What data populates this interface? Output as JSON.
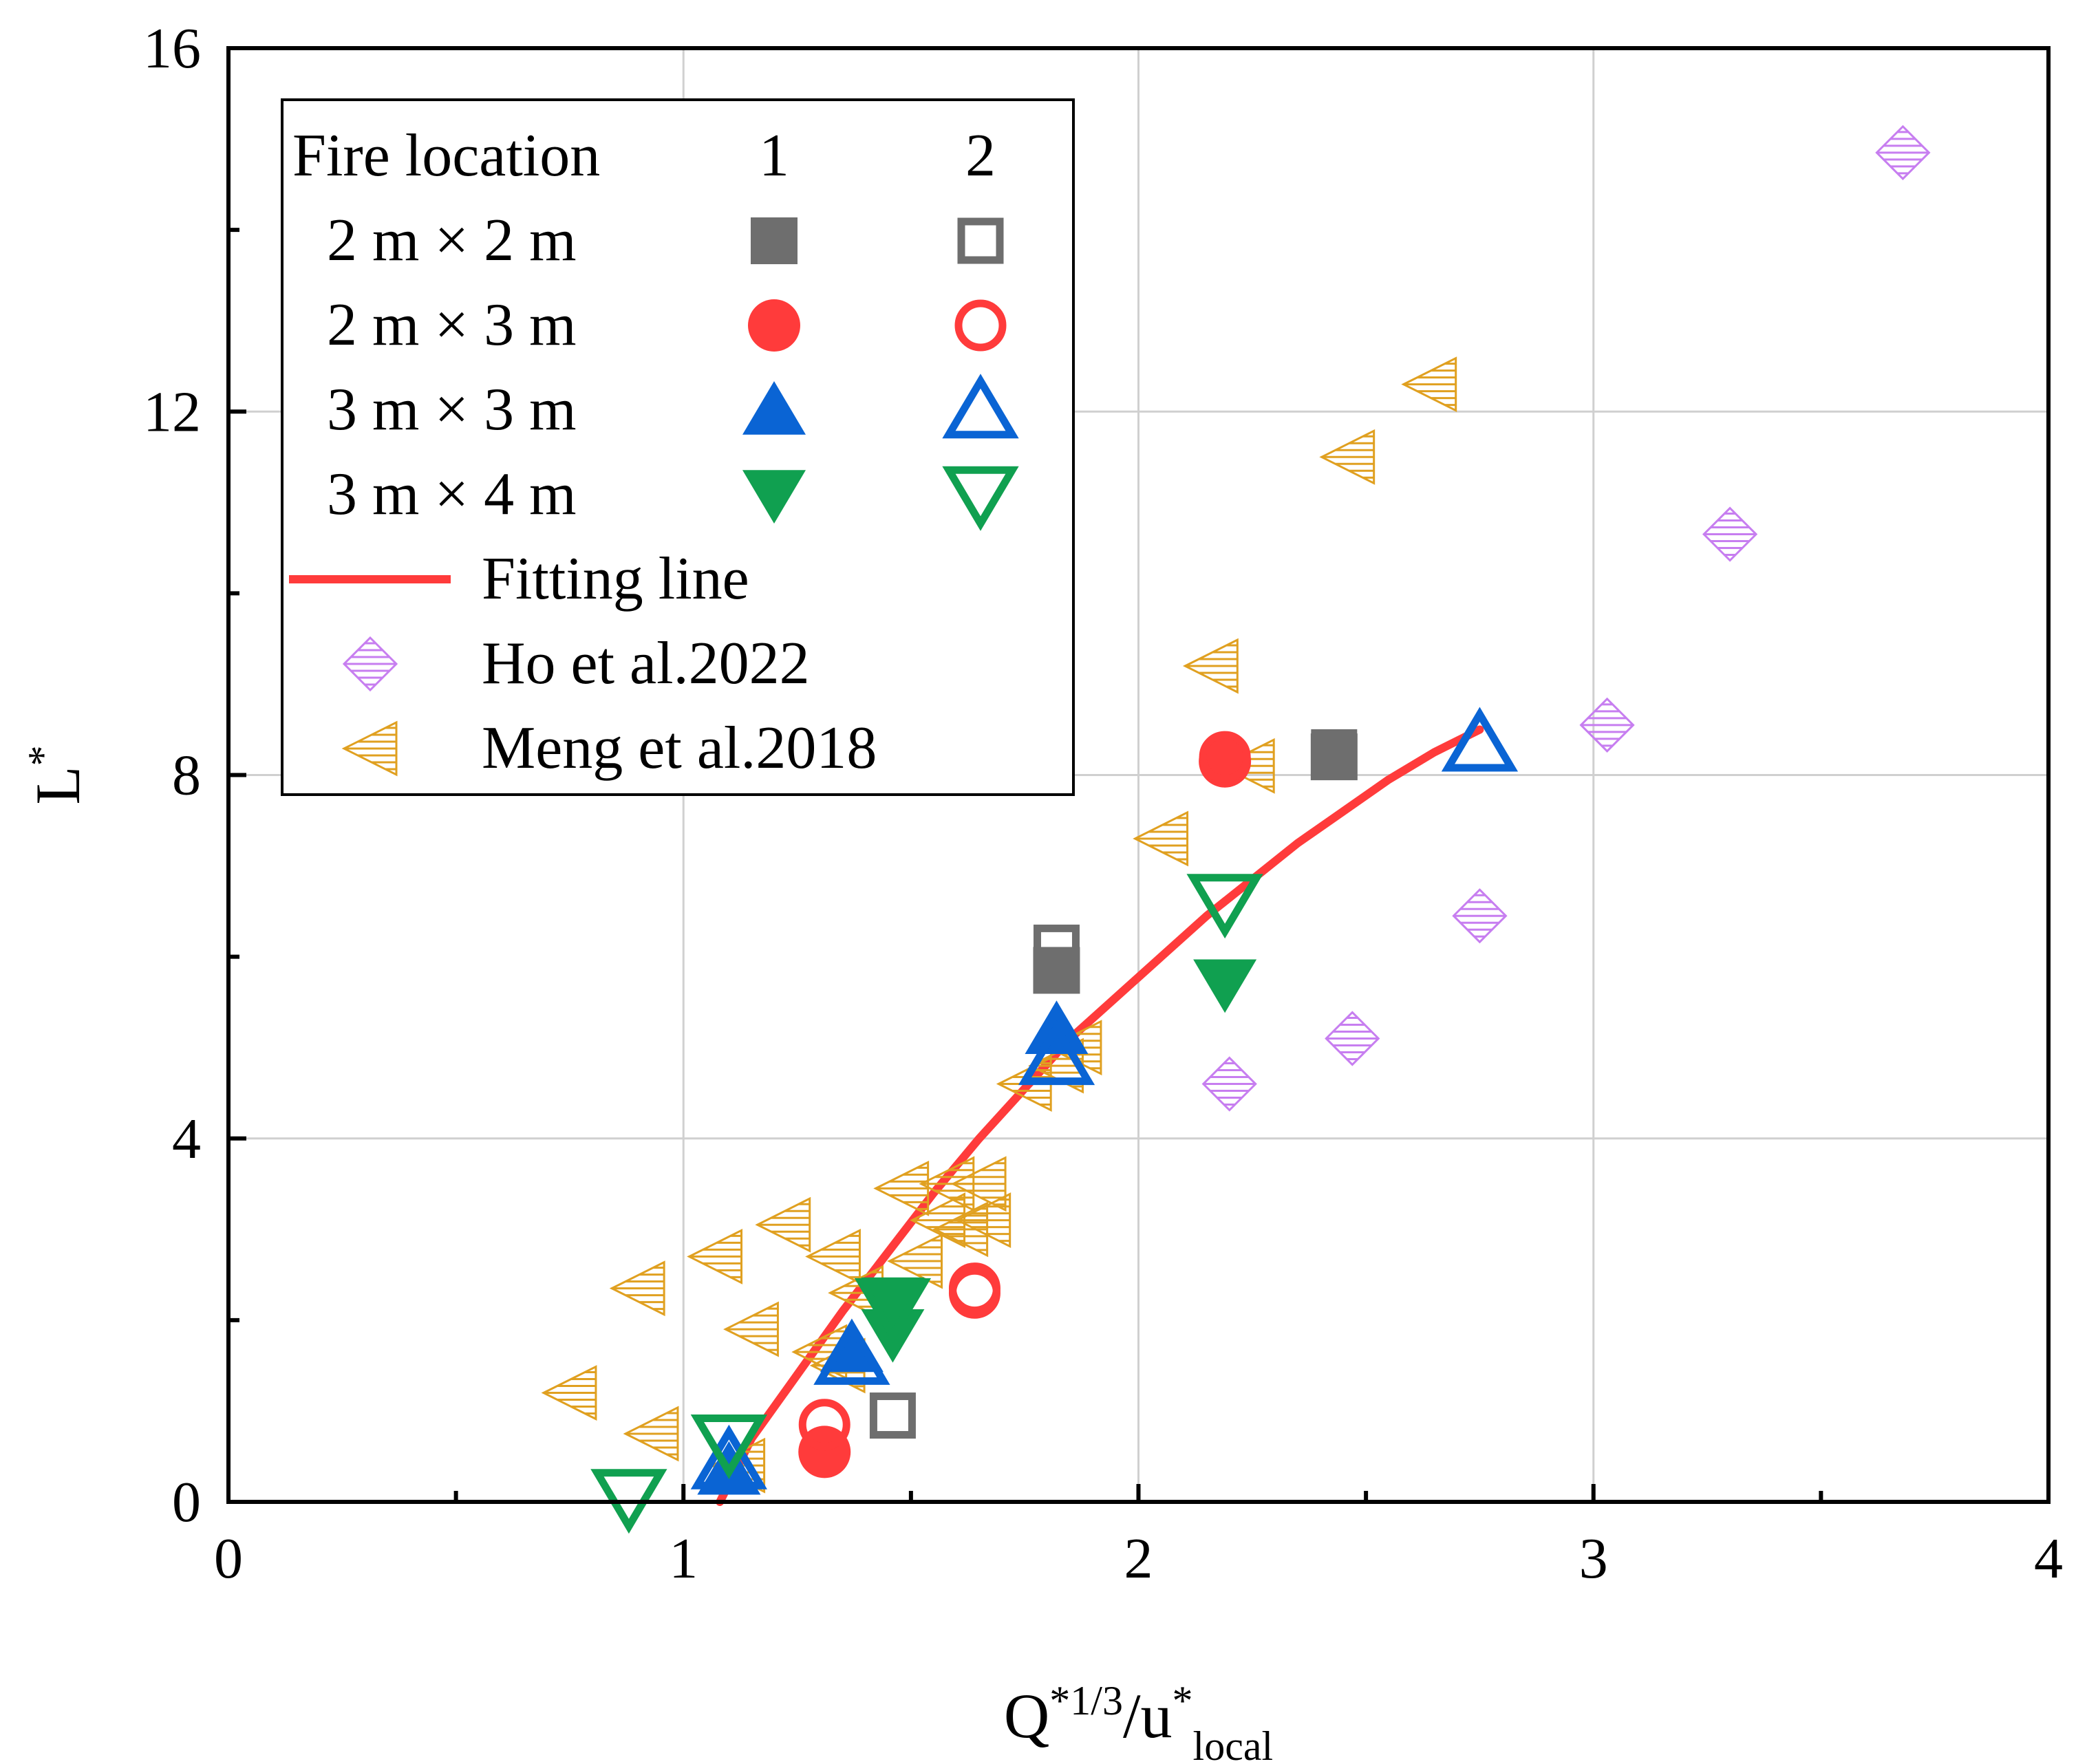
{
  "chart_data": {
    "type": "scatter",
    "xlabel": {
      "main": "Q",
      "sup": "*1/3",
      "mid": "/u",
      "sup2": "*",
      "sub": "local"
    },
    "ylabel": {
      "main": "L",
      "sup": "*"
    },
    "xlim": [
      0,
      4
    ],
    "ylim": [
      0,
      16
    ],
    "xticks": [
      "0",
      "1",
      "2",
      "3",
      "4"
    ],
    "yticks": [
      "0",
      "4",
      "8",
      "12",
      "16"
    ],
    "xtick_values": [
      0,
      1,
      2,
      3,
      4
    ],
    "ytick_values": [
      0,
      4,
      8,
      12,
      16
    ],
    "minor_xticks": [
      0.5,
      1.5,
      2.5,
      3.5
    ],
    "minor_yticks": [
      2,
      6,
      10,
      14
    ],
    "grid": true,
    "legend": {
      "position": "top-left",
      "header": {
        "title": "Fire location",
        "col1": "1",
        "col2": "2"
      },
      "size_rows": [
        "2 m × 2 m",
        "2 m × 3 m",
        "3 m × 3 m",
        "3 m × 4 m"
      ],
      "fit_label": "Fitting line",
      "ref_labels": [
        "Ho et al.2022",
        "Meng et al.2018"
      ]
    },
    "colors": {
      "square": "#6e6e6e",
      "circle": "#ff3b3b",
      "up_triangle": "#0a64d4",
      "down_triangle": "#10a050",
      "fit_line": "#ff3b3b",
      "ho": "#c77ef0",
      "meng": "#e0a020"
    },
    "series": [
      {
        "group": "2 m × 2 m",
        "location": "1",
        "marker": "square",
        "filled": true,
        "points": [
          [
            1.82,
            5.85
          ],
          [
            2.43,
            8.2
          ]
        ]
      },
      {
        "group": "2 m × 2 m",
        "location": "2",
        "marker": "square",
        "filled": false,
        "points": [
          [
            1.82,
            6.1
          ],
          [
            2.43,
            8.25
          ],
          [
            1.46,
            0.95
          ]
        ]
      },
      {
        "group": "2 m × 3 m",
        "location": "1",
        "marker": "circle",
        "filled": true,
        "points": [
          [
            1.31,
            0.55
          ],
          [
            2.19,
            8.15
          ]
        ]
      },
      {
        "group": "2 m × 3 m",
        "location": "2",
        "marker": "circle",
        "filled": false,
        "points": [
          [
            1.31,
            0.85
          ],
          [
            1.64,
            2.35
          ],
          [
            2.19,
            8.2
          ],
          [
            1.64,
            2.3
          ]
        ]
      },
      {
        "group": "3 m × 3 m",
        "location": "1",
        "marker": "triangle-up",
        "filled": true,
        "points": [
          [
            1.37,
            1.7
          ],
          [
            1.82,
            5.2
          ],
          [
            1.1,
            0.35
          ]
        ]
      },
      {
        "group": "3 m × 3 m",
        "location": "2",
        "marker": "triangle-up",
        "filled": false,
        "points": [
          [
            1.37,
            1.6
          ],
          [
            1.82,
            4.9
          ],
          [
            2.75,
            8.35
          ],
          [
            1.1,
            0.45
          ]
        ]
      },
      {
        "group": "3 m × 4 m",
        "location": "1",
        "marker": "triangle-down",
        "filled": true,
        "points": [
          [
            1.46,
            1.85
          ],
          [
            2.19,
            5.7
          ],
          [
            1.46,
            2.2
          ]
        ]
      },
      {
        "group": "3 m × 4 m",
        "location": "2",
        "marker": "triangle-down",
        "filled": false,
        "points": [
          [
            0.88,
            0.05
          ],
          [
            1.1,
            0.65
          ],
          [
            1.46,
            2.15
          ],
          [
            2.19,
            6.6
          ]
        ]
      },
      {
        "group": "Ho et al.2022",
        "marker": "diamond",
        "filled": false,
        "points": [
          [
            2.2,
            4.6
          ],
          [
            2.47,
            5.1
          ],
          [
            2.75,
            6.45
          ],
          [
            3.03,
            8.55
          ],
          [
            3.3,
            10.65
          ],
          [
            3.68,
            14.85
          ]
        ]
      },
      {
        "group": "Meng et al.2018",
        "marker": "triangle-left",
        "filled": false,
        "points": [
          [
            0.75,
            1.2
          ],
          [
            0.93,
            0.75
          ],
          [
            0.9,
            2.35
          ],
          [
            1.07,
            2.7
          ],
          [
            1.15,
            1.9
          ],
          [
            1.22,
            3.05
          ],
          [
            1.3,
            1.65
          ],
          [
            1.34,
            1.5
          ],
          [
            1.33,
            2.7
          ],
          [
            1.38,
            2.3
          ],
          [
            1.48,
            3.45
          ],
          [
            1.51,
            2.65
          ],
          [
            1.58,
            3.5
          ],
          [
            1.56,
            3.1
          ],
          [
            1.65,
            3.5
          ],
          [
            1.61,
            3.0
          ],
          [
            1.66,
            3.1
          ],
          [
            1.75,
            4.6
          ],
          [
            1.82,
            4.8
          ],
          [
            1.86,
            5.0
          ],
          [
            2.05,
            7.3
          ],
          [
            2.16,
            9.2
          ],
          [
            2.24,
            8.1
          ],
          [
            2.46,
            11.5
          ],
          [
            2.64,
            12.3
          ],
          [
            1.12,
            0.4
          ]
        ]
      }
    ],
    "fit_line": {
      "x": [
        1.08,
        1.15,
        1.25,
        1.35,
        1.45,
        1.55,
        1.65,
        1.75,
        1.85,
        1.95,
        2.05,
        2.15,
        2.25,
        2.35,
        2.45,
        2.55,
        2.65,
        2.75
      ],
      "y": [
        0.0,
        0.7,
        1.4,
        2.1,
        2.75,
        3.4,
        4.0,
        4.55,
        5.1,
        5.55,
        6.0,
        6.45,
        6.85,
        7.25,
        7.6,
        7.95,
        8.25,
        8.5
      ]
    }
  }
}
